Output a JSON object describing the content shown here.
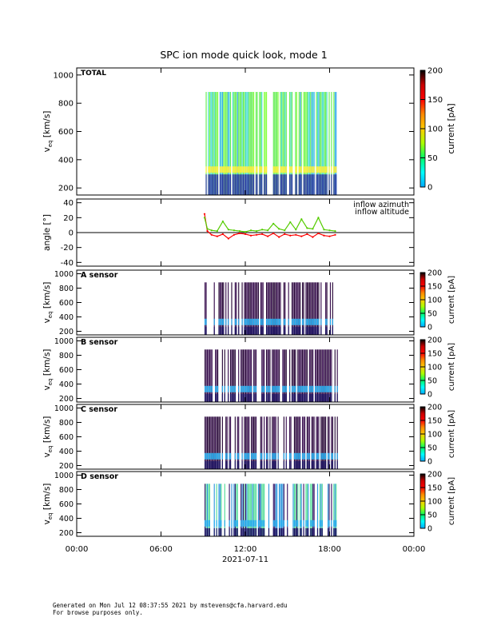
{
  "title": "SPC ion mode quick look, mode 1",
  "xaxis": {
    "tick_labels": [
      "00:00",
      "06:00",
      "12:00",
      "18:00",
      "00:00"
    ],
    "date_label": "2021-07-11"
  },
  "colorbar": {
    "label": "current [pA]",
    "range": [
      0,
      200
    ],
    "ticks_big": [
      "200",
      "150",
      "100",
      "50",
      "0"
    ],
    "ticks_small": [
      "200",
      "150",
      "100",
      "50",
      "0"
    ],
    "colors": [
      "#00aaff",
      "#00ffff",
      "#00ff66",
      "#aaff00",
      "#ffcc00",
      "#ff8800",
      "#ff0000",
      "#cc0000",
      "#000000"
    ]
  },
  "footer": {
    "line1": "Generated on Mon Jul 12 08:37:55 2021 by mstevens@cfa.harvard.edu",
    "line2": "For browse purposes only."
  },
  "chart_data": [
    {
      "type": "heatmap",
      "panel_label": "TOTAL",
      "ylabel": "v",
      "ylabel_sub": "eq",
      "ylabel_unit": "[km/s]",
      "ylim": [
        150,
        1050
      ],
      "yticks": [
        "200",
        "400",
        "600",
        "800",
        "1000"
      ],
      "data_extent_hours": [
        9.1,
        18.6
      ],
      "v_max": 880,
      "beam_v": 330,
      "style": "total"
    },
    {
      "type": "line",
      "ylabel": "angle",
      "ylabel_unit": "[°]",
      "ylim": [
        -45,
        45
      ],
      "yticks": [
        "40",
        "20",
        "0",
        "-20",
        "-40"
      ],
      "zero_line": true,
      "series": [
        {
          "name": "inflow azimuth",
          "color": "#ff0000",
          "x": [
            9.1,
            9.3,
            9.6,
            10.0,
            10.4,
            10.8,
            11.2,
            11.6,
            12.0,
            12.4,
            12.8,
            13.2,
            13.6,
            14.0,
            14.4,
            14.8,
            15.2,
            15.6,
            16.0,
            16.4,
            16.8,
            17.2,
            17.6,
            18.0,
            18.4
          ],
          "y": [
            25,
            2,
            -3,
            -5,
            -2,
            -8,
            -3,
            -1,
            -2,
            -4,
            -3,
            -2,
            -5,
            -1,
            -6,
            -2,
            -4,
            -3,
            -5,
            -2,
            -6,
            -1,
            -4,
            -5,
            -3
          ]
        },
        {
          "name": "inflow altitude",
          "color": "#55cc00",
          "x": [
            9.1,
            9.3,
            9.6,
            10.0,
            10.4,
            10.8,
            11.2,
            11.6,
            12.0,
            12.4,
            12.8,
            13.2,
            13.6,
            14.0,
            14.4,
            14.8,
            15.2,
            15.6,
            16.0,
            16.4,
            16.8,
            17.2,
            17.6,
            18.0,
            18.4
          ],
          "y": [
            20,
            5,
            3,
            2,
            15,
            4,
            3,
            2,
            1,
            3,
            2,
            4,
            3,
            12,
            5,
            3,
            14,
            4,
            18,
            6,
            5,
            20,
            4,
            3,
            2
          ]
        }
      ],
      "legend_placement": "top-right"
    },
    {
      "type": "heatmap",
      "panel_label": "A sensor",
      "ylabel": "v",
      "ylabel_sub": "eq",
      "ylabel_unit": "[km/s]",
      "ylim": [
        150,
        1050
      ],
      "yticks": [
        "200",
        "400",
        "600",
        "800",
        "1000"
      ],
      "data_extent_hours": [
        9.1,
        18.6
      ],
      "v_max": 880,
      "beam_v": 330,
      "style": "sensor"
    },
    {
      "type": "heatmap",
      "panel_label": "B sensor",
      "ylabel": "v",
      "ylabel_sub": "eq",
      "ylabel_unit": "[km/s]",
      "ylim": [
        150,
        1050
      ],
      "yticks": [
        "200",
        "400",
        "600",
        "800",
        "1000"
      ],
      "data_extent_hours": [
        9.1,
        18.6
      ],
      "v_max": 880,
      "beam_v": 330,
      "style": "sensor"
    },
    {
      "type": "heatmap",
      "panel_label": "C sensor",
      "ylabel": "v",
      "ylabel_sub": "eq",
      "ylabel_unit": "[km/s]",
      "ylim": [
        150,
        1050
      ],
      "yticks": [
        "200",
        "400",
        "600",
        "800",
        "1000"
      ],
      "data_extent_hours": [
        9.1,
        18.6
      ],
      "v_max": 880,
      "beam_v": 330,
      "style": "sensor"
    },
    {
      "type": "heatmap",
      "panel_label": "D sensor",
      "ylabel": "v",
      "ylabel_sub": "eq",
      "ylabel_unit": "[km/s]",
      "ylim": [
        150,
        1050
      ],
      "yticks": [
        "200",
        "400",
        "600",
        "800",
        "1000"
      ],
      "data_extent_hours": [
        9.1,
        18.6
      ],
      "v_max": 880,
      "beam_v": 330,
      "style": "dsensor"
    }
  ]
}
